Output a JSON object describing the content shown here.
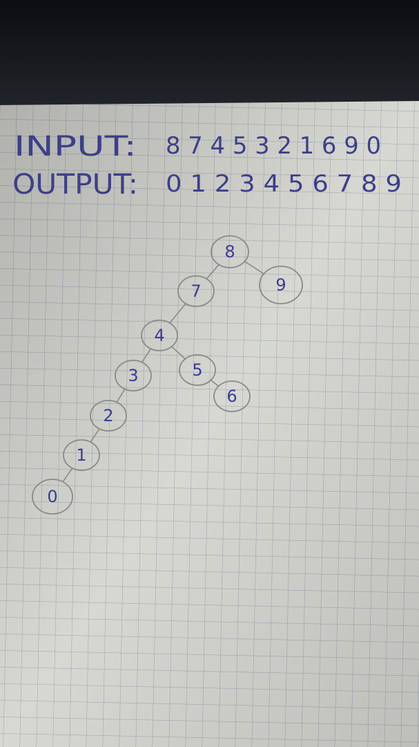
{
  "notes": {
    "input_label": "INPUT:",
    "input_value": "8 7 4 5 3 2 1 6 9 0",
    "output_label": "OUTPUT:",
    "output_value": "0 1 2 3 4 5 6 7 8 9"
  },
  "tree": {
    "nodes": [
      {
        "id": "8",
        "label": "8"
      },
      {
        "id": "7",
        "label": "7"
      },
      {
        "id": "9",
        "label": "9"
      },
      {
        "id": "4",
        "label": "4"
      },
      {
        "id": "3",
        "label": "3"
      },
      {
        "id": "5",
        "label": "5"
      },
      {
        "id": "6",
        "label": "6"
      },
      {
        "id": "2",
        "label": "2"
      },
      {
        "id": "1",
        "label": "1"
      },
      {
        "id": "0",
        "label": "0"
      }
    ],
    "edges": [
      {
        "from": "8",
        "to": "7"
      },
      {
        "from": "8",
        "to": "9"
      },
      {
        "from": "7",
        "to": "4"
      },
      {
        "from": "4",
        "to": "3"
      },
      {
        "from": "4",
        "to": "5"
      },
      {
        "from": "5",
        "to": "6"
      },
      {
        "from": "3",
        "to": "2"
      },
      {
        "from": "2",
        "to": "1"
      },
      {
        "from": "1",
        "to": "0"
      }
    ]
  },
  "colors": {
    "ink": "#3d3f8a",
    "pencil": "#8a8a86",
    "paper": "#d9d9d3",
    "grid": "#9fa6b3",
    "background": "#141518"
  }
}
